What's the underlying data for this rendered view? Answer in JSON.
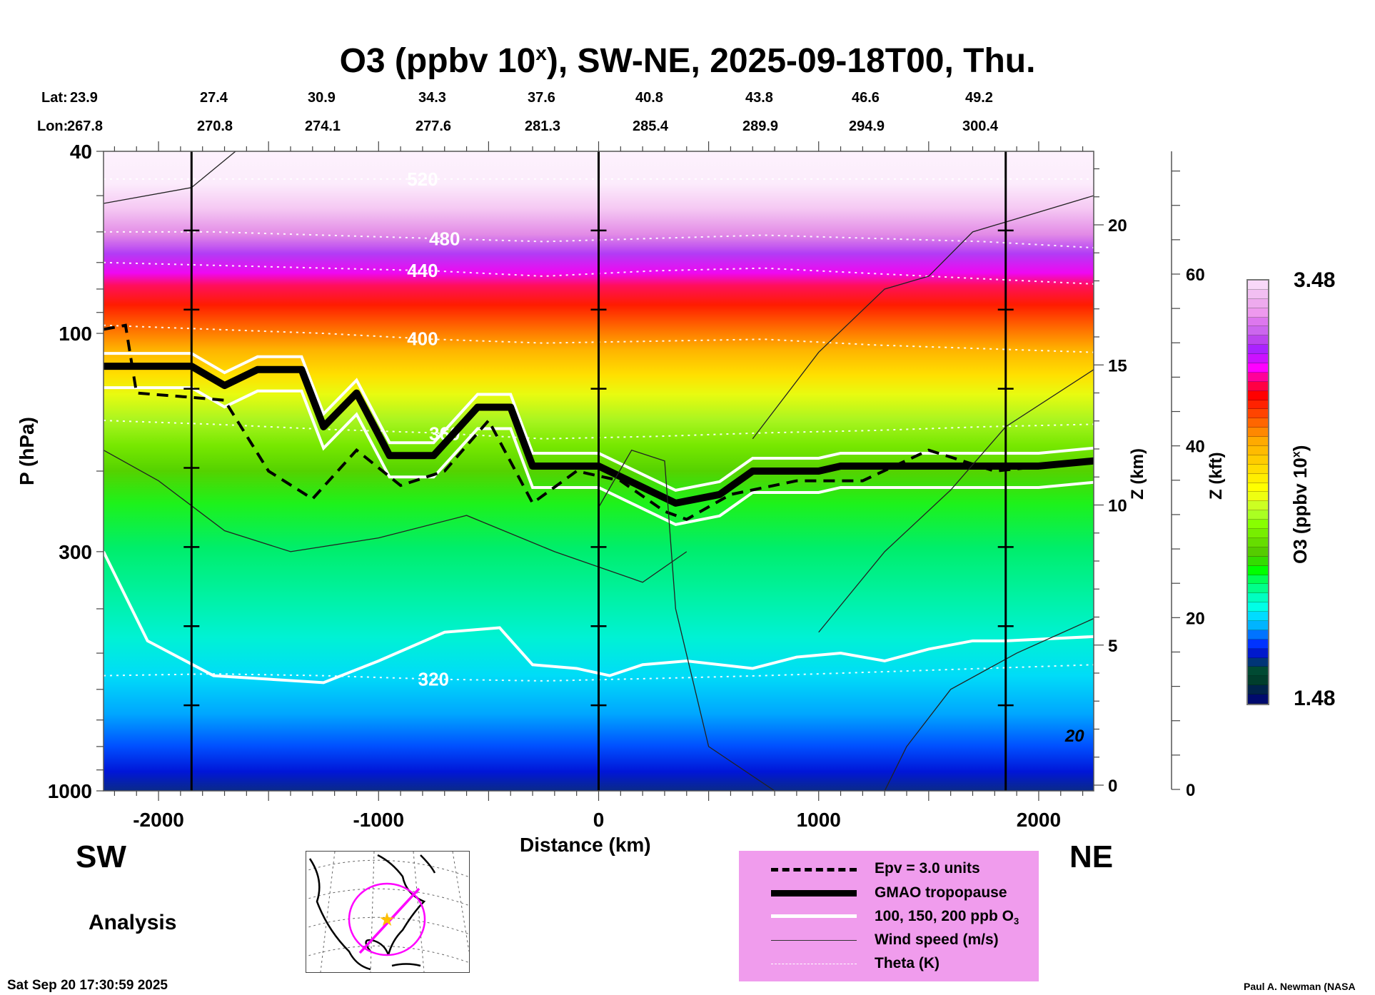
{
  "chart_data": {
    "type": "heatmap",
    "title": "O3 (ppbv 10^x), SW-NE, 2025-09-18T00, Thu.",
    "title_parts": {
      "main": "O3 (ppbv 10",
      "sup": "x",
      "rest": "), SW-NE, 2025-09-18T00, Thu."
    },
    "xlabel": "Distance (km)",
    "ylabel": "P (hPa)",
    "right_axis_1_label": "Z (km)",
    "right_axis_2_label": "Z (kft)",
    "colorbar_label": "O3 (ppbv 10^x)",
    "colorbar_label_parts": {
      "main": "O3 (ppbv 10",
      "sup": "x",
      "rest": ")"
    },
    "xlim": [
      -2250,
      2250
    ],
    "ylim_hpa": [
      1000,
      40
    ],
    "y_scale": "log",
    "x_ticks": [
      -2000,
      -1000,
      0,
      1000,
      2000
    ],
    "x_tick_labels": [
      "-2000",
      "-1000",
      "0",
      "1000",
      "2000"
    ],
    "y_ticks": [
      40,
      100,
      300,
      1000
    ],
    "y_tick_labels": [
      "40",
      "100",
      "300",
      "1000"
    ],
    "z_km_ticks": [
      0,
      5,
      10,
      15,
      20
    ],
    "z_km_tick_labels": [
      "0",
      "5",
      "10",
      "15",
      "20"
    ],
    "z_kft_ticks": [
      0,
      20,
      40,
      60
    ],
    "z_kft_tick_labels": [
      "0",
      "20",
      "40",
      "60"
    ],
    "colorbar_range": [
      1.48,
      3.48
    ],
    "colorbar_min_label": "1.48",
    "colorbar_max_label": "3.48",
    "colorbar_colors": [
      "#000a6e",
      "#00234a",
      "#003e2c",
      "#004a33",
      "#003577",
      "#0019cc",
      "#0033ff",
      "#0073ff",
      "#00b4ff",
      "#00dcff",
      "#00ffe6",
      "#00ffc0",
      "#00ff8a",
      "#00ff55",
      "#00ff00",
      "#33dd00",
      "#55cc00",
      "#66dd00",
      "#77ee00",
      "#88ff00",
      "#aaff22",
      "#ccff22",
      "#eeff11",
      "#ffff00",
      "#ffee00",
      "#ffdd00",
      "#ffcc00",
      "#ffbb00",
      "#ffaa00",
      "#ff8800",
      "#ff6600",
      "#ff4400",
      "#ff2200",
      "#ff0000",
      "#ff0044",
      "#ff0099",
      "#ff00ff",
      "#cc11ff",
      "#aa22ff",
      "#bb44ee",
      "#cc66ee",
      "#dd77ee",
      "#ee99ee",
      "#eeaaee",
      "#f2bff2",
      "#f8d8f8"
    ],
    "cross_section": {
      "lat_label": "Lat:",
      "lon_label": "Lon:",
      "lat": [
        "23.9",
        "27.4",
        "30.9",
        "34.3",
        "37.6",
        "40.8",
        "43.8",
        "46.6",
        "49.2"
      ],
      "lon": [
        "267.8",
        "270.8",
        "274.1",
        "277.6",
        "281.3",
        "285.4",
        "289.9",
        "294.9",
        "300.4"
      ]
    },
    "vertical_markers_km": [
      -1850,
      0,
      1850
    ],
    "theta_contours_K": [
      {
        "label": "520",
        "hpa": [
          46,
          46,
          46,
          46,
          46,
          46,
          46,
          46,
          46,
          46
        ],
        "label_at_km": -800
      },
      {
        "label": "480",
        "hpa": [
          60,
          60,
          61,
          62,
          63,
          62,
          61,
          62,
          63,
          65
        ],
        "label_at_km": -700
      },
      {
        "label": "440",
        "hpa": [
          70,
          71,
          72,
          73,
          75,
          73,
          72,
          74,
          76,
          78
        ],
        "label_at_km": -800
      },
      {
        "label": "400",
        "hpa": [
          96,
          98,
          100,
          103,
          105,
          104,
          103,
          106,
          108,
          110
        ],
        "label_at_km": -800
      },
      {
        "label": "360",
        "hpa": [
          155,
          158,
          162,
          165,
          170,
          168,
          165,
          163,
          160,
          158
        ],
        "label_at_km": -700
      },
      {
        "label": "320",
        "hpa": [
          560,
          555,
          560,
          570,
          575,
          568,
          560,
          550,
          540,
          530
        ],
        "label_at_km": -750
      }
    ],
    "theta_x_km": [
      -2250,
      -1750,
      -1250,
      -750,
      -250,
      250,
      750,
      1250,
      1750,
      2250
    ],
    "tropopause_x_km": [
      -2250,
      -1850,
      -1700,
      -1550,
      -1350,
      -1250,
      -1100,
      -950,
      -750,
      -550,
      -400,
      -300,
      0,
      350,
      550,
      700,
      1000,
      1100,
      1500,
      2000,
      2250
    ],
    "tropopause_hpa": [
      118,
      118,
      130,
      120,
      120,
      160,
      135,
      185,
      185,
      145,
      145,
      195,
      195,
      235,
      225,
      200,
      200,
      195,
      195,
      195,
      190
    ],
    "epv_x_km": [
      -2250,
      -2150,
      -2100,
      -1850,
      -1700,
      -1500,
      -1300,
      -1100,
      -900,
      -700,
      -500,
      -300,
      -100,
      100,
      300,
      400,
      600,
      900,
      1200,
      1500,
      1800,
      2250
    ],
    "epv_hpa": [
      98,
      96,
      135,
      138,
      140,
      200,
      230,
      180,
      215,
      200,
      155,
      235,
      200,
      210,
      245,
      255,
      225,
      210,
      210,
      180,
      200,
      190
    ],
    "legend": [
      {
        "style": "dashed",
        "label": "Epv = 3.0 units"
      },
      {
        "style": "thick",
        "label": "GMAO tropopause"
      },
      {
        "style": "white",
        "label": "100, 150, 200 ppb O",
        "sub": "3"
      },
      {
        "style": "thin",
        "label": "Wind speed (m/s)"
      },
      {
        "style": "dotted",
        "label": "Theta (K)"
      }
    ],
    "wind_contour_label": "20"
  },
  "labels": {
    "sw": "SW",
    "ne": "NE",
    "analysis": "Analysis",
    "timestamp": "Sat Sep 20 17:30:59 2025",
    "credit": "Paul A. Newman (NASA"
  }
}
